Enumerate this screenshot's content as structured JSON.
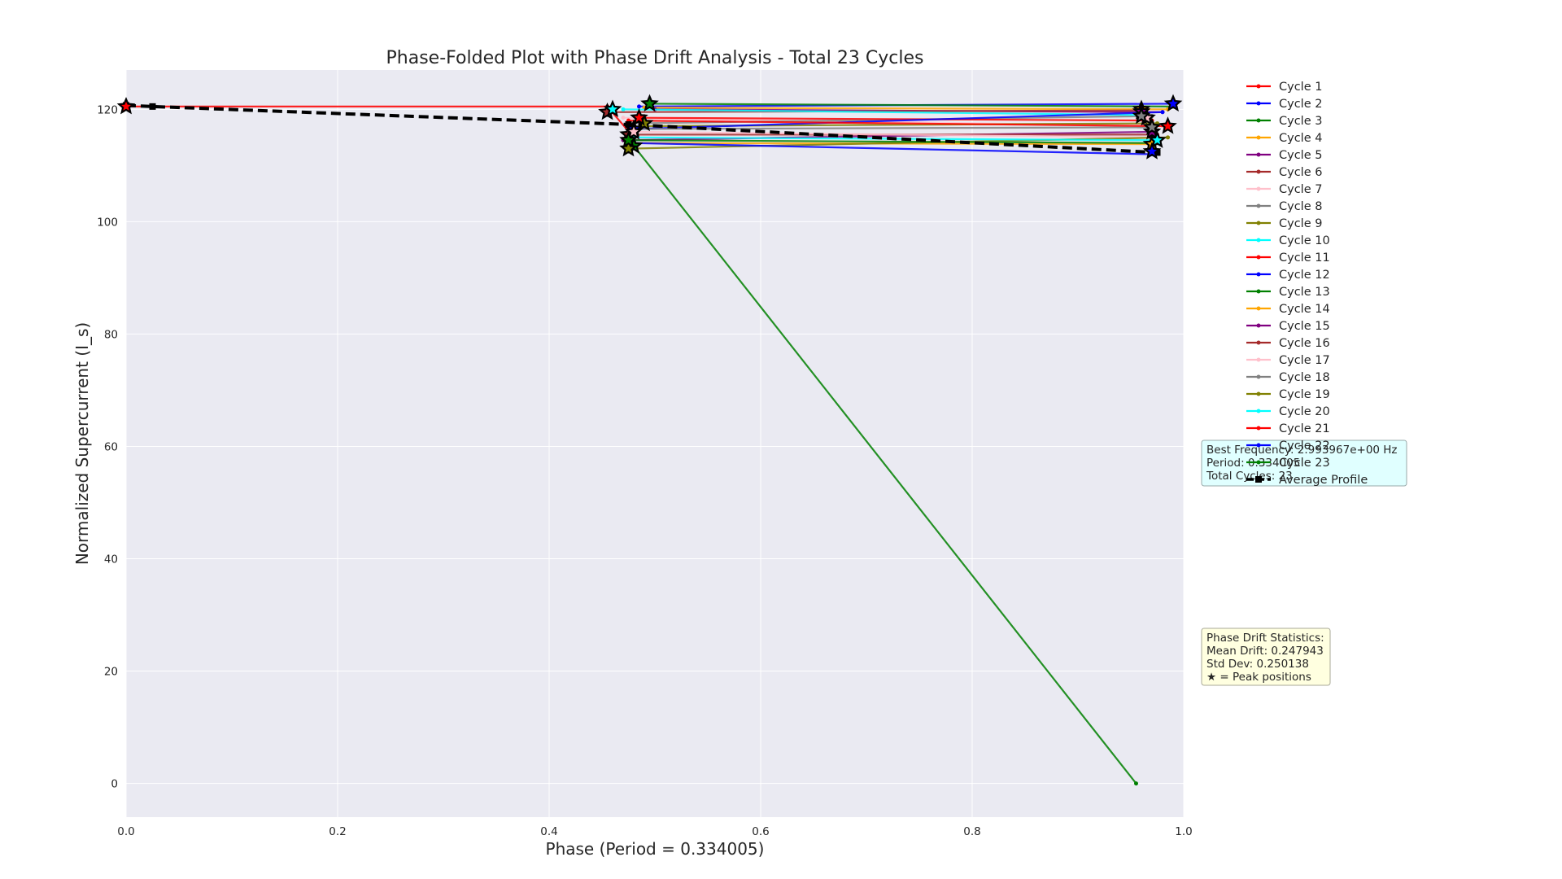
{
  "chart_data": {
    "type": "line",
    "title": "Phase-Folded Plot with Phase Drift Analysis - Total 23 Cycles",
    "xlabel": "Phase (Period = 0.334005)",
    "ylabel": "Normalized Supercurrent (I_s)",
    "xlim": [
      0.0,
      1.0
    ],
    "ylim": [
      -6,
      127
    ],
    "x_ticks": [
      "0.0",
      "0.2",
      "0.4",
      "0.6",
      "0.8",
      "1.0"
    ],
    "y_ticks": [
      "0",
      "20",
      "40",
      "60",
      "80",
      "100",
      "120"
    ],
    "grid": true,
    "legend_position": "outside-right",
    "series": [
      {
        "name": "Cycle 1",
        "color": "#ff0000",
        "x": [
          0.0,
          0.455,
          0.48
        ],
        "y": [
          120.5,
          120.5,
          115.0
        ],
        "peak": [
          0.0,
          120.5
        ]
      },
      {
        "name": "Cycle 2",
        "color": "#0000ff",
        "x": [
          0.485,
          0.992
        ],
        "y": [
          120.5,
          121.0
        ],
        "peak": [
          0.99,
          121.0
        ]
      },
      {
        "name": "Cycle 3",
        "color": "#008000",
        "x": [
          0.495,
          0.99
        ],
        "y": [
          121.0,
          120.5
        ],
        "peak": [
          0.495,
          121.0
        ]
      },
      {
        "name": "Cycle 4",
        "color": "#ffa500",
        "x": [
          0.49,
          0.985
        ],
        "y": [
          120.3,
          120.0
        ],
        "peak": [
          0.96,
          120.0
        ]
      },
      {
        "name": "Cycle 5",
        "color": "#800080",
        "x": [
          0.5,
          0.98
        ],
        "y": [
          120.0,
          119.5
        ],
        "peak": [
          0.96,
          119.6
        ]
      },
      {
        "name": "Cycle 6",
        "color": "#a52a2a",
        "x": [
          0.455,
          0.96
        ],
        "y": [
          119.5,
          119.8
        ],
        "peak": [
          0.455,
          119.5
        ]
      },
      {
        "name": "Cycle 7",
        "color": "#ffc0cb",
        "x": [
          0.47,
          0.98
        ],
        "y": [
          118.5,
          117.0
        ],
        "peak": [
          0.965,
          118.5
        ]
      },
      {
        "name": "Cycle 8",
        "color": "#808080",
        "x": [
          0.48,
          0.97
        ],
        "y": [
          117.5,
          118.8
        ],
        "peak": [
          0.96,
          118.8
        ]
      },
      {
        "name": "Cycle 9",
        "color": "#808000",
        "x": [
          0.49,
          0.975
        ],
        "y": [
          117.0,
          117.5
        ],
        "peak": [
          0.49,
          117.5
        ]
      },
      {
        "name": "Cycle 10",
        "color": "#00ffff",
        "x": [
          0.47,
          0.96
        ],
        "y": [
          120.0,
          119.0
        ],
        "peak": [
          0.46,
          120.0
        ]
      },
      {
        "name": "Cycle 11",
        "color": "#ff0000",
        "x": [
          0.485,
          0.97
        ],
        "y": [
          118.5,
          118.0
        ],
        "peak": [
          0.485,
          118.5
        ]
      },
      {
        "name": "Cycle 12",
        "color": "#0000ff",
        "x": [
          0.48,
          0.98
        ],
        "y": [
          116.5,
          119.5
        ],
        "peak": [
          0.48,
          116.5
        ]
      },
      {
        "name": "Cycle 13",
        "color": "#008000",
        "x": [
          0.48,
          0.955
        ],
        "y": [
          113.5,
          0.0
        ],
        "peak": [
          0.48,
          113.5
        ]
      },
      {
        "name": "Cycle 14",
        "color": "#ffa500",
        "x": [
          0.48,
          0.97
        ],
        "y": [
          114.0,
          113.8
        ],
        "peak": [
          0.97,
          113.8
        ]
      },
      {
        "name": "Cycle 15",
        "color": "#800080",
        "x": [
          0.47,
          0.97
        ],
        "y": [
          114.5,
          116.0
        ],
        "peak": [
          0.97,
          116.0
        ]
      },
      {
        "name": "Cycle 16",
        "color": "#a52a2a",
        "x": [
          0.475,
          0.975
        ],
        "y": [
          115.5,
          115.5
        ],
        "peak": [
          0.475,
          115.5
        ]
      },
      {
        "name": "Cycle 17",
        "color": "#ffc0cb",
        "x": [
          0.48,
          0.97
        ],
        "y": [
          116.0,
          115.0
        ],
        "peak": [
          0.48,
          116.0
        ]
      },
      {
        "name": "Cycle 18",
        "color": "#808080",
        "x": [
          0.475,
          0.97
        ],
        "y": [
          116.5,
          116.8
        ],
        "peak": [
          0.97,
          116.8
        ]
      },
      {
        "name": "Cycle 19",
        "color": "#808000",
        "x": [
          0.475,
          0.985
        ],
        "y": [
          113.0,
          115.0
        ],
        "peak": [
          0.475,
          113.0
        ]
      },
      {
        "name": "Cycle 20",
        "color": "#00ffff",
        "x": [
          0.48,
          0.975
        ],
        "y": [
          115.0,
          114.5
        ],
        "peak": [
          0.975,
          114.5
        ]
      },
      {
        "name": "Cycle 21",
        "color": "#ff0000",
        "x": [
          0.475,
          0.985
        ],
        "y": [
          118.0,
          117.0
        ],
        "peak": [
          0.985,
          117.0
        ]
      },
      {
        "name": "Cycle 22",
        "color": "#0000ff",
        "x": [
          0.48,
          0.97
        ],
        "y": [
          114.0,
          112.0
        ],
        "peak": [
          0.97,
          112.5
        ]
      },
      {
        "name": "Cycle 23",
        "color": "#008000",
        "x": [
          0.475,
          0.975
        ],
        "y": [
          114.5,
          114.0
        ],
        "peak": [
          0.475,
          114.5
        ]
      }
    ],
    "average_profile": {
      "name": "Average Profile",
      "color": "#000000",
      "x": [
        0.0,
        0.025,
        0.475,
        0.975
      ],
      "y": [
        120.7,
        120.5,
        117.3,
        112.3
      ]
    },
    "info_box": [
      "Best Frequency: 2.993967e+00 Hz",
      "Period: 0.334005",
      "Total Cycles: 23"
    ],
    "drift_box": [
      "Phase Drift Statistics:",
      "Mean Drift: 0.247943",
      "Std Dev: 0.250138",
      "★ = Peak positions"
    ],
    "colors": {
      "plot_bg": "#eaeaf2",
      "grid": "#ffffff",
      "info_box_bg": "#e0ffff",
      "drift_box_bg": "#ffffe0"
    }
  }
}
